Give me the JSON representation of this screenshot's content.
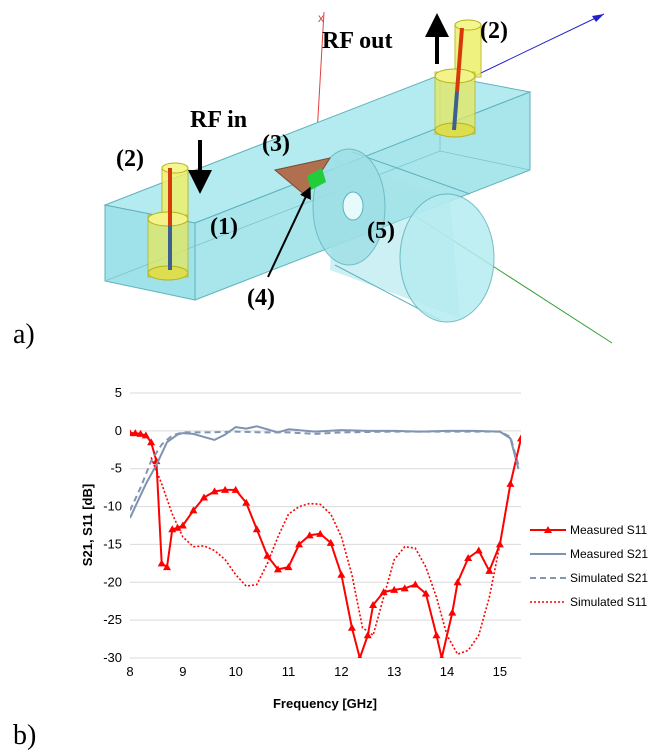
{
  "figure": {
    "panel_a": {
      "letter": "a)",
      "labels": {
        "rf_out": "RF out",
        "rf_in": "RF in",
        "l1": "(1)",
        "l2a": "(2)",
        "l2b": "(2)",
        "l3": "(3)",
        "l4": "(4)",
        "l5": "(5)"
      },
      "colors": {
        "waveguide": "#a7e6ec",
        "waveguide_edge": "#5fb2bc",
        "connector": "#eef06a",
        "connector_edge": "#b3b318",
        "pin_red": "#d63a0c",
        "pin_blue": "#3f5f8f",
        "triangle": "#b07050",
        "green_patch": "#22cc3a",
        "axis_red": "#e04040",
        "axis_blue": "#2020cc",
        "axis_green": "#30a030"
      }
    },
    "panel_b": {
      "letter": "b)"
    }
  },
  "chart_data": {
    "type": "line",
    "xlabel": "Frequency [GHz]",
    "ylabel": "S21, S11 [dB]",
    "xlim": [
      8,
      15.4
    ],
    "ylim": [
      -30,
      5
    ],
    "xticks": [
      8,
      9,
      10,
      11,
      12,
      13,
      14,
      15
    ],
    "yticks": [
      5,
      0,
      -5,
      -10,
      -15,
      -20,
      -25,
      -30
    ],
    "grid": "horizontal",
    "legend_position": "right",
    "series": [
      {
        "name": "Measured S11",
        "color": "#ff0000",
        "style": "solid-triangle",
        "x": [
          8.0,
          8.1,
          8.2,
          8.3,
          8.4,
          8.5,
          8.6,
          8.7,
          8.8,
          8.9,
          9.0,
          9.2,
          9.4,
          9.6,
          9.8,
          10.0,
          10.2,
          10.4,
          10.6,
          10.8,
          11.0,
          11.2,
          11.4,
          11.6,
          11.8,
          12.0,
          12.2,
          12.35,
          12.5,
          12.6,
          12.8,
          13.0,
          13.2,
          13.4,
          13.6,
          13.8,
          13.9,
          14.1,
          14.2,
          14.4,
          14.6,
          14.8,
          15.0,
          15.2,
          15.4
        ],
        "y": [
          -0.3,
          -0.3,
          -0.4,
          -0.6,
          -1.5,
          -4.0,
          -17.5,
          -18.0,
          -13.0,
          -12.8,
          -12.5,
          -10.5,
          -8.8,
          -8.0,
          -7.8,
          -7.8,
          -9.5,
          -13.0,
          -16.5,
          -18.3,
          -18.0,
          -15.0,
          -13.8,
          -13.6,
          -14.8,
          -19.0,
          -26.0,
          -30.0,
          -27.0,
          -23.0,
          -21.3,
          -21.0,
          -20.8,
          -20.3,
          -21.5,
          -27.0,
          -30.0,
          -24.0,
          -20.0,
          -16.8,
          -15.8,
          -18.5,
          -15.0,
          -7.0,
          -1.0
        ]
      },
      {
        "name": "Measured S21",
        "color": "#7f93b0",
        "style": "solid",
        "x": [
          8.0,
          8.1,
          8.3,
          8.5,
          8.7,
          8.9,
          9.0,
          9.2,
          9.4,
          9.6,
          9.8,
          10.0,
          10.2,
          10.4,
          10.6,
          10.8,
          11.0,
          11.5,
          12.0,
          12.5,
          13.0,
          13.5,
          14.0,
          14.5,
          15.0,
          15.2,
          15.35
        ],
        "y": [
          -11.5,
          -10.0,
          -7.0,
          -4.5,
          -1.5,
          -0.5,
          -0.3,
          -0.4,
          -0.8,
          -1.2,
          -0.5,
          0.5,
          0.3,
          0.6,
          0.2,
          -0.2,
          0.2,
          -0.1,
          0.1,
          0.0,
          0.0,
          -0.1,
          0.0,
          0.0,
          -0.1,
          -1.0,
          -5.0
        ]
      },
      {
        "name": "Simulated S21",
        "color": "#8296b3",
        "style": "dashed",
        "x": [
          8.0,
          8.2,
          8.4,
          8.6,
          8.8,
          9.0,
          9.5,
          10.0,
          10.5,
          11.0,
          11.5,
          12.0,
          13.0,
          14.0,
          15.0,
          15.2,
          15.35
        ],
        "y": [
          -10.5,
          -7.5,
          -4.0,
          -1.8,
          -0.6,
          -0.2,
          -0.2,
          -0.1,
          -0.2,
          -0.2,
          -0.4,
          -0.2,
          -0.1,
          -0.1,
          -0.1,
          -0.8,
          -4.5
        ]
      },
      {
        "name": "Simulated S11",
        "color": "#ff0000",
        "style": "dotted",
        "x": [
          8.4,
          8.6,
          8.8,
          9.0,
          9.2,
          9.4,
          9.6,
          9.8,
          10.0,
          10.2,
          10.4,
          10.6,
          10.8,
          11.0,
          11.2,
          11.4,
          11.6,
          11.8,
          12.0,
          12.2,
          12.4,
          12.6,
          12.8,
          13.0,
          13.2,
          13.4,
          13.6,
          13.8,
          14.0,
          14.2,
          14.4,
          14.6,
          14.8,
          15.0,
          15.2,
          15.4
        ],
        "y": [
          -3.5,
          -7.0,
          -11.0,
          -14.0,
          -15.3,
          -15.2,
          -15.8,
          -17.0,
          -19.0,
          -20.5,
          -20.3,
          -17.5,
          -14.0,
          -11.0,
          -10.0,
          -9.6,
          -9.7,
          -11.0,
          -14.0,
          -19.0,
          -26.0,
          -27.0,
          -22.0,
          -17.0,
          -15.3,
          -15.5,
          -18.0,
          -22.0,
          -27.0,
          -29.5,
          -29.0,
          -27.0,
          -22.0,
          -15.0,
          -7.0,
          -1.0
        ]
      }
    ]
  }
}
